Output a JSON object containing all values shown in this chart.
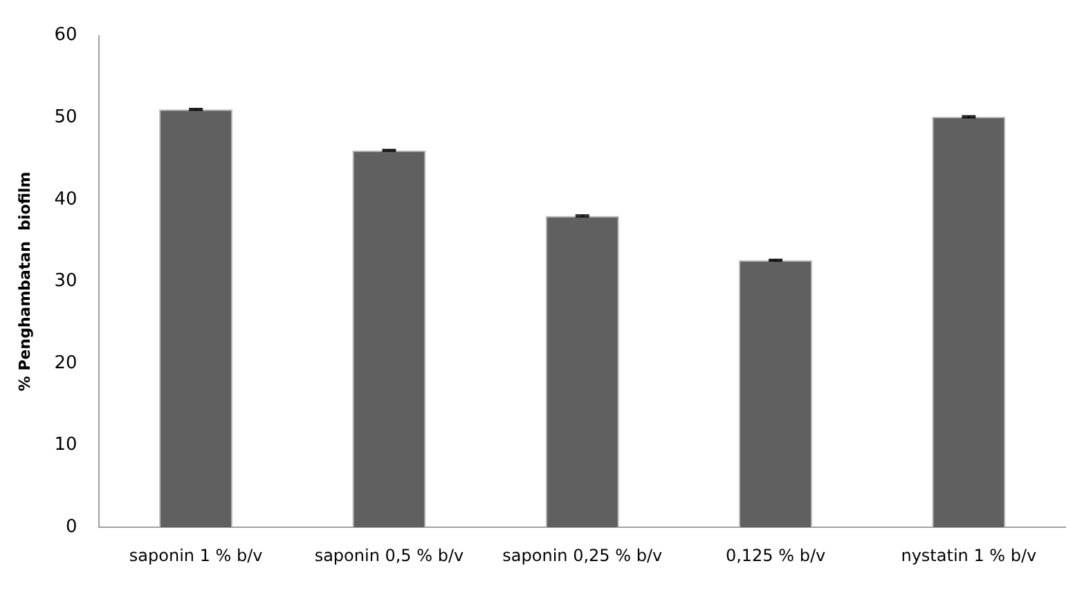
{
  "chart_data": {
    "type": "bar",
    "ylabel": "% Penghambatan  biofilm",
    "categories": [
      "saponin 1 % b/v",
      "saponin 0,5 % b/v",
      "saponin 0,25 % b/v",
      "0,125 % b/v",
      "nystatin 1 % b/v"
    ],
    "values": [
      51,
      46,
      38,
      32.6,
      50.1
    ],
    "errors": [
      0.1,
      0.1,
      0.1,
      0.1,
      0.1
    ],
    "color": "#606060",
    "ylim": [
      0,
      60
    ],
    "yticks": [
      0,
      10,
      20,
      30,
      40,
      50,
      60
    ],
    "grid": false,
    "legend": false
  }
}
